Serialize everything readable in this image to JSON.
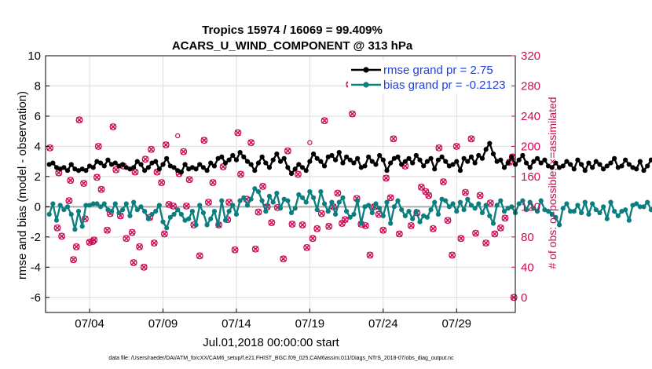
{
  "chart_data": {
    "type": "line",
    "title_line1": "Tropics 15974 / 16069 = 99.409%",
    "title_line2": "ACARS_U_WIND_COMPONENT @ 313 hPa",
    "xlabel": "Jul.01,2018 00:00:00 start",
    "ylabel_left": "rmse and bias (model - observation)",
    "ylabel_right": "# of obs: o=possible; ×=assimilated",
    "footer": "data file: /Users/raeder/DAI/ATM_forcXX/CAM6_setup/f.e21.FHIST_BGC.f09_025.CAM6assim.011/Diags_NTrS_2018-07/obs_diag_output.nc",
    "xlim": [
      1,
      33
    ],
    "ylim_left": [
      -7,
      10
    ],
    "ylim_right": [
      -20,
      320
    ],
    "x_ticks": [
      4,
      9,
      14,
      19,
      24,
      29
    ],
    "x_tick_labels": [
      "07/04",
      "07/09",
      "07/14",
      "07/19",
      "07/24",
      "07/29"
    ],
    "y_left_ticks": [
      -6,
      -4,
      -2,
      0,
      2,
      4,
      6,
      8,
      10
    ],
    "y_left_tick_labels": [
      "-6",
      "-4",
      "-2",
      "0",
      "2",
      "4",
      "6",
      "8",
      "10"
    ],
    "y_right_ticks": [
      0,
      40,
      80,
      120,
      160,
      200,
      240,
      280,
      320
    ],
    "y_right_tick_labels": [
      "0",
      "40",
      "80",
      "120",
      "160",
      "200",
      "240",
      "280",
      "320"
    ],
    "legend": [
      {
        "label": "rmse grand pr = 2.75",
        "color": "#000000"
      },
      {
        "label": "bias grand pr = -0.2123",
        "color": "#0b7f7f"
      }
    ],
    "colors": {
      "rmse": "#000000",
      "bias": "#0b7f7f",
      "obs": "#cc0b55",
      "zero": "#aaaaaa"
    },
    "x_start": 1.25,
    "x_step": 0.25,
    "series": [
      {
        "name": "rmse",
        "values": [
          2.8,
          2.9,
          2.6,
          2.5,
          2.6,
          2.4,
          2.8,
          2.5,
          2.4,
          2.5,
          2.4,
          2.7,
          2.6,
          3.0,
          2.9,
          2.7,
          3.1,
          2.8,
          2.9,
          2.7,
          2.8,
          2.6,
          2.5,
          2.6,
          3.0,
          2.8,
          2.4,
          2.6,
          2.9,
          3.0,
          2.5,
          2.8,
          3.2,
          2.7,
          2.6,
          2.4,
          2.3,
          2.8,
          2.5,
          2.6,
          2.5,
          2.8,
          2.6,
          2.4,
          2.9,
          2.7,
          3.2,
          3.3,
          2.9,
          3.1,
          3.4,
          3.1,
          3.6,
          3.3,
          3.0,
          2.8,
          2.4,
          2.9,
          3.3,
          2.9,
          2.6,
          3.1,
          3.5,
          3.0,
          3.2,
          2.6,
          2.2,
          2.5,
          2.8,
          2.6,
          2.4,
          3.0,
          3.5,
          3.2,
          3.0,
          2.7,
          3.3,
          3.4,
          3.1,
          3.6,
          2.9,
          3.3,
          3.1,
          2.9,
          3.2,
          2.6,
          2.7,
          3.3,
          3.0,
          2.8,
          3.4,
          3.1,
          2.4,
          2.9,
          3.2,
          3.3,
          2.8,
          3.0,
          3.2,
          2.9,
          3.4,
          3.1,
          2.7,
          3.0,
          3.2,
          2.5,
          3.1,
          3.3,
          3.0,
          2.7,
          2.8,
          3.0,
          2.4,
          3.2,
          3.0,
          3.3,
          2.9,
          3.4,
          3.2,
          3.8,
          4.2,
          3.5,
          3.0,
          3.1,
          2.6,
          2.9,
          3.3,
          2.8,
          3.1,
          3.4,
          2.9,
          2.6,
          3.0,
          3.2,
          2.9,
          3.1,
          2.7,
          2.6,
          2.9,
          2.6,
          2.7,
          3.0,
          2.8,
          2.5,
          3.1,
          2.8,
          2.4,
          2.9,
          2.6,
          3.0,
          2.8,
          2.5,
          2.7,
          2.9,
          3.2,
          2.6,
          2.7,
          3.1,
          2.8,
          2.6,
          2.5,
          3.0,
          2.4,
          2.7,
          3.1,
          3.0,
          2.9,
          2.7,
          2.4,
          2.5,
          2.6,
          2.2,
          2.5,
          2.6,
          2.5,
          2.3,
          2.6,
          2.8,
          2.5,
          2.4,
          2.3,
          2.9,
          2.6,
          3.3,
          2.8,
          2.5,
          2.6,
          2.6,
          2.6,
          2.6,
          2.6,
          2.6,
          2.6,
          2.6,
          2.6
        ]
      },
      {
        "name": "bias",
        "values": [
          -0.5,
          0.2,
          -0.9,
          0.1,
          -0.2,
          0.0,
          -0.5,
          -1.5,
          -0.3,
          -1.3,
          0.1,
          0.1,
          0.2,
          0.2,
          0.0,
          0.2,
          -0.2,
          -0.3,
          0.2,
          -0.4,
          -0.2,
          0.2,
          -0.6,
          0.3,
          -0.2,
          0.0,
          -0.3,
          -0.8,
          -0.5,
          -0.3,
          0.1,
          -1.0,
          -1.4,
          -0.7,
          -0.5,
          -0.2,
          -0.5,
          -0.9,
          -0.8,
          -0.3,
          -1.2,
          0.1,
          -0.4,
          -1.2,
          -0.8,
          -0.3,
          -1.2,
          0.4,
          -0.9,
          -0.3,
          0.1,
          -0.5,
          0.4,
          0.6,
          0.1,
          0.5,
          1.2,
          1.0,
          0.4,
          -0.3,
          0.7,
          0.3,
          0.9,
          -0.1,
          0.5,
          0.4,
          -0.4,
          -0.1,
          0.8,
          0.6,
          0.3,
          1.0,
          0.6,
          -0.2,
          1.0,
          0.2,
          -0.3,
          0.3,
          -0.5,
          0.3,
          0.6,
          -0.3,
          -0.7,
          -0.5,
          0.4,
          -1.1,
          0.0,
          0.1,
          -0.4,
          0.2,
          -0.1,
          -0.6,
          0.3,
          -1.1,
          0.0,
          0.4,
          -0.2,
          -0.6,
          -0.3,
          -0.8,
          -0.3,
          -1.0,
          -0.6,
          -0.7,
          -0.2,
          0.3,
          -0.5,
          0.5,
          0.4,
          0.0,
          0.2,
          -0.3,
          0.3,
          -0.2,
          0.5,
          0.1,
          -0.1,
          0.2,
          -0.4,
          0.1,
          -0.6,
          -1.1,
          0.1,
          0.4,
          -0.3,
          -0.1,
          0.0,
          -0.4,
          0.2,
          0.4,
          -0.2,
          0.3,
          -0.1,
          -0.3,
          0.4,
          -0.2,
          -0.3,
          -0.5,
          -0.7,
          -1.2,
          -0.1,
          0.2,
          -0.3,
          -0.3,
          0.1,
          -0.4,
          0.3,
          -0.5,
          0.2,
          -0.2,
          -0.4,
          0.0,
          -0.8,
          0.3,
          -0.3,
          -0.6,
          -0.3,
          -0.2,
          -0.9,
          0.1,
          0.2,
          0.0,
          0.0,
          0.3,
          -0.2,
          0.3,
          0.1,
          -0.3,
          -0.4,
          0.2,
          -0.3,
          -0.4,
          -0.5,
          0.2,
          0.4,
          -0.2,
          -0.1,
          -0.4,
          0.1,
          -0.1,
          -0.4,
          0.1,
          -0.6,
          0.4,
          -0.9,
          0.2,
          0.0,
          0.2,
          0.2,
          0.2,
          0.2,
          0.2,
          0.2,
          0.2,
          0.2
        ]
      }
    ],
    "obs_points": [
      [
        1.3,
        198
      ],
      [
        1.8,
        92
      ],
      [
        1.9,
        165
      ],
      [
        2.1,
        81
      ],
      [
        2.6,
        128
      ],
      [
        2.7,
        155
      ],
      [
        2.9,
        50
      ],
      [
        3.1,
        67
      ],
      [
        3.3,
        235
      ],
      [
        3.6,
        151
      ],
      [
        3.7,
        104
      ],
      [
        4.0,
        73
      ],
      [
        4.2,
        74
      ],
      [
        4.3,
        76
      ],
      [
        4.5,
        159
      ],
      [
        4.6,
        200
      ],
      [
        4.8,
        143
      ],
      [
        5.2,
        89
      ],
      [
        5.4,
        111
      ],
      [
        5.6,
        226
      ],
      [
        5.8,
        169
      ],
      [
        6.1,
        108
      ],
      [
        6.3,
        174
      ],
      [
        6.5,
        78
      ],
      [
        6.9,
        86
      ],
      [
        7.0,
        46
      ],
      [
        7.1,
        166
      ],
      [
        7.4,
        67
      ],
      [
        7.7,
        40
      ],
      [
        7.8,
        183
      ],
      [
        8.1,
        106
      ],
      [
        8.2,
        196
      ],
      [
        8.4,
        72
      ],
      [
        8.6,
        166
      ],
      [
        8.9,
        152
      ],
      [
        9.1,
        84
      ],
      [
        9.2,
        202
      ],
      [
        9.4,
        123
      ],
      [
        9.7,
        121
      ],
      [
        10.1,
        164
      ],
      [
        10.4,
        193
      ],
      [
        10.6,
        121
      ],
      [
        10.8,
        156
      ],
      [
        11.1,
        96
      ],
      [
        11.5,
        55
      ],
      [
        11.8,
        208
      ],
      [
        12.1,
        126
      ],
      [
        12.4,
        152
      ],
      [
        12.8,
        96
      ],
      [
        13.1,
        173
      ],
      [
        13.4,
        103
      ],
      [
        13.5,
        126
      ],
      [
        13.9,
        63
      ],
      [
        14.1,
        218
      ],
      [
        14.3,
        163
      ],
      [
        14.7,
        130
      ],
      [
        15.0,
        205
      ],
      [
        15.3,
        64
      ],
      [
        15.5,
        113
      ],
      [
        15.8,
        147
      ],
      [
        16.1,
        120
      ],
      [
        16.4,
        99
      ],
      [
        16.8,
        119
      ],
      [
        17.2,
        51
      ],
      [
        17.5,
        194
      ],
      [
        17.8,
        97
      ],
      [
        18.2,
        163
      ],
      [
        18.5,
        96
      ],
      [
        18.8,
        66
      ],
      [
        19.2,
        78
      ],
      [
        19.5,
        91
      ],
      [
        19.8,
        111
      ],
      [
        20.0,
        234
      ],
      [
        20.3,
        94
      ],
      [
        20.6,
        120
      ],
      [
        20.9,
        138
      ],
      [
        21.2,
        98
      ],
      [
        21.4,
        103
      ],
      [
        21.7,
        282
      ],
      [
        21.9,
        243
      ],
      [
        22.2,
        131
      ],
      [
        22.5,
        97
      ],
      [
        22.8,
        95
      ],
      [
        23.1,
        56
      ],
      [
        23.4,
        120
      ],
      [
        23.7,
        110
      ],
      [
        24.0,
        89
      ],
      [
        24.2,
        158
      ],
      [
        24.5,
        132
      ],
      [
        24.7,
        210
      ],
      [
        25.1,
        84
      ],
      [
        25.5,
        174
      ],
      [
        25.9,
        95
      ],
      [
        26.3,
        112
      ],
      [
        26.6,
        146
      ],
      [
        26.9,
        140
      ],
      [
        27.1,
        135
      ],
      [
        27.4,
        91
      ],
      [
        27.8,
        198
      ],
      [
        28.1,
        153
      ],
      [
        28.4,
        102
      ],
      [
        28.7,
        56
      ],
      [
        29.0,
        200
      ],
      [
        29.3,
        78
      ],
      [
        29.6,
        139
      ],
      [
        30.0,
        210
      ],
      [
        30.3,
        85
      ],
      [
        30.6,
        135
      ],
      [
        31.0,
        72
      ],
      [
        31.3,
        125
      ],
      [
        31.6,
        84
      ],
      [
        32.0,
        92
      ],
      [
        32.3,
        105
      ],
      [
        32.6,
        179
      ],
      [
        32.8,
        186
      ],
      [
        32.9,
        0
      ]
    ],
    "possible_points": [
      [
        10.0,
        214
      ],
      [
        19.0,
        205
      ]
    ]
  }
}
